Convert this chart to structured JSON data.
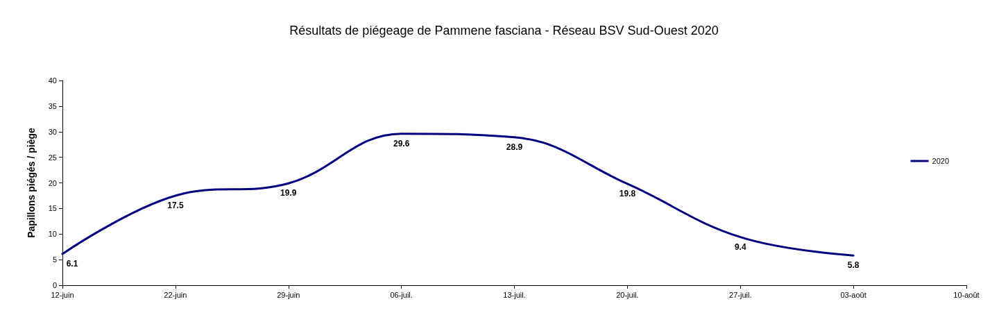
{
  "chart_data": {
    "type": "line",
    "title": "Résultats de piégeage de Pammene fasciana - Réseau BSV Sud-Ouest 2020",
    "ylabel": "Papillons piégés / piège",
    "categories": [
      "12-juin",
      "22-juin",
      "29-juin",
      "06-juil.",
      "13-juil.",
      "20-juil.",
      "27-juil.",
      "03-août",
      "10-août"
    ],
    "series": [
      {
        "name": "2020",
        "color": "#000080",
        "values": [
          6.1,
          17.5,
          19.9,
          29.6,
          28.9,
          19.8,
          9.4,
          5.8,
          null
        ]
      }
    ],
    "ylim": [
      0,
      40
    ],
    "yticks": [
      0,
      5,
      10,
      15,
      20,
      25,
      30,
      35,
      40
    ],
    "grid": false,
    "legend": "right",
    "marker": "none",
    "line_style": "solid",
    "data_labels": true
  }
}
